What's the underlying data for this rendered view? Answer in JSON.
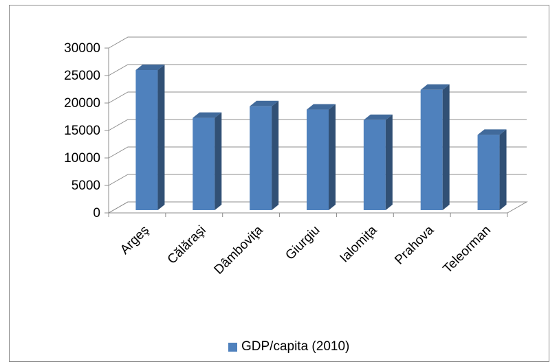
{
  "chart_data": {
    "type": "bar",
    "style": "3d-column",
    "categories": [
      "Argeş",
      "Călăraşi",
      "Dâmboviţa",
      "Giurgiu",
      "Ialomiţa",
      "Prahova",
      "Teleorman"
    ],
    "series": [
      {
        "name": "GDP/capita (2010)",
        "values": [
          26000,
          17300,
          19400,
          18800,
          16900,
          22400,
          14200
        ],
        "color": "#4f81bd"
      }
    ],
    "yticks": [
      "0",
      "5000",
      "10000",
      "15000",
      "20000",
      "25000",
      "30000"
    ],
    "ylim": [
      0,
      30000
    ],
    "grid": true,
    "legend_position": "bottom"
  }
}
